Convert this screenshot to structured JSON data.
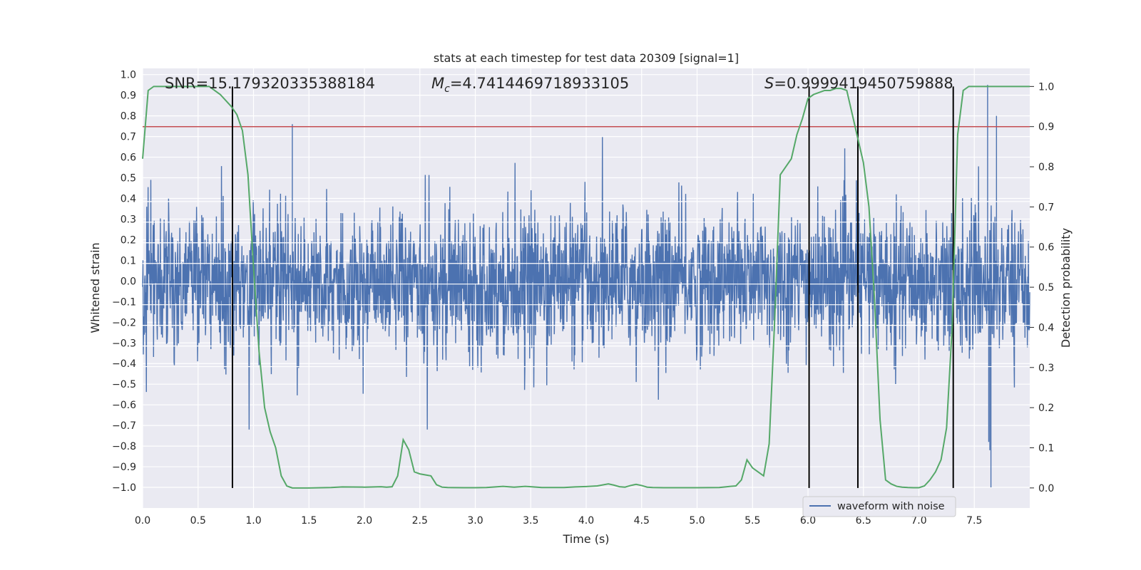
{
  "chart_data": {
    "type": "line",
    "title": "stats at each timestep for test data 20309 [signal=1]",
    "xlabel": "Time (s)",
    "ylabel": "Whitened strain",
    "ylabel_right": "Detection probability",
    "xlim": [
      0.0,
      8.0
    ],
    "ylim": [
      -1.1,
      1.03
    ],
    "ylim_right": [
      -0.05,
      1.045
    ],
    "x_ticks": [
      "0.0",
      "0.5",
      "1.0",
      "1.5",
      "2.0",
      "2.5",
      "3.0",
      "3.5",
      "4.0",
      "4.5",
      "5.0",
      "5.5",
      "6.0",
      "6.5",
      "7.0",
      "7.5"
    ],
    "y_ticks": [
      "1.0",
      "0.9",
      "0.8",
      "0.7",
      "0.6",
      "0.5",
      "0.4",
      "0.3",
      "0.2",
      "0.1",
      "0.0",
      "−0.1",
      "−0.2",
      "−0.3",
      "−0.4",
      "−0.5",
      "−0.6",
      "−0.7",
      "−0.8",
      "−0.9",
      "−1.0"
    ],
    "y_ticks_right": [
      "1.0",
      "0.9",
      "0.8",
      "0.7",
      "0.6",
      "0.5",
      "0.4",
      "0.3",
      "0.2",
      "0.1",
      "0.0"
    ],
    "grid": true,
    "legend": {
      "location": "lower-right",
      "entries": [
        "waveform with noise"
      ]
    },
    "annotations": {
      "snr": "SNR=15.179320335388184",
      "mc_symbol": "M",
      "mc_sub": "c",
      "mc_value": "=4.7414469718933105",
      "s_symbol": "S",
      "s_value": "=0.9999419450759888"
    },
    "threshold_probability": 0.9,
    "vertical_lines_time": [
      0.81,
      6.01,
      6.45,
      7.31
    ],
    "waveform": {
      "name": "waveform with noise",
      "duration_s": 8.0,
      "typical_amplitude": 0.4,
      "peak_max": 1.0,
      "peak_min": -1.0
    },
    "probability_series": {
      "x": [
        0.0,
        0.05,
        0.1,
        0.2,
        0.3,
        0.4,
        0.5,
        0.6,
        0.7,
        0.8,
        0.85,
        0.9,
        0.95,
        1.0,
        1.05,
        1.1,
        1.15,
        1.2,
        1.25,
        1.3,
        1.35,
        1.5,
        1.7,
        1.8,
        2.0,
        2.15,
        2.2,
        2.25,
        2.3,
        2.35,
        2.4,
        2.45,
        2.5,
        2.6,
        2.65,
        2.7,
        2.75,
        2.8,
        2.9,
        3.0,
        3.1,
        3.25,
        3.35,
        3.45,
        3.5,
        3.6,
        3.8,
        3.9,
        4.0,
        4.1,
        4.2,
        4.25,
        4.3,
        4.35,
        4.4,
        4.45,
        4.5,
        4.55,
        4.6,
        4.7,
        5.0,
        5.2,
        5.3,
        5.35,
        5.4,
        5.45,
        5.5,
        5.55,
        5.6,
        5.65,
        5.7,
        5.75,
        5.8,
        5.85,
        5.9,
        5.95,
        6.0,
        6.05,
        6.1,
        6.15,
        6.2,
        6.25,
        6.3,
        6.35,
        6.4,
        6.45,
        6.5,
        6.55,
        6.6,
        6.65,
        6.7,
        6.75,
        6.8,
        6.85,
        6.9,
        6.95,
        7.0,
        7.05,
        7.1,
        7.15,
        7.2,
        7.25,
        7.3,
        7.35,
        7.4,
        7.45,
        7.55,
        7.65,
        8.0
      ],
      "y": [
        0.82,
        0.99,
        1.0,
        1.0,
        1.0,
        1.0,
        1.0,
        1.0,
        0.98,
        0.95,
        0.93,
        0.89,
        0.78,
        0.55,
        0.34,
        0.2,
        0.14,
        0.1,
        0.03,
        0.005,
        0.0,
        0.0,
        0.001,
        0.0025,
        0.002,
        0.003,
        0.002,
        0.003,
        0.03,
        0.12,
        0.095,
        0.04,
        0.035,
        0.03,
        0.008,
        0.002,
        0.001,
        0.0008,
        0.0005,
        0.0005,
        0.001,
        0.004,
        0.002,
        0.004,
        0.003,
        0.001,
        0.001,
        0.0025,
        0.0035,
        0.005,
        0.01,
        0.007,
        0.003,
        0.002,
        0.006,
        0.009,
        0.006,
        0.002,
        0.001,
        0.0005,
        0.0005,
        0.001,
        0.004,
        0.005,
        0.02,
        0.07,
        0.05,
        0.04,
        0.03,
        0.11,
        0.42,
        0.78,
        0.8,
        0.82,
        0.88,
        0.92,
        0.97,
        0.98,
        0.985,
        0.99,
        0.99,
        0.995,
        0.995,
        0.99,
        0.93,
        0.87,
        0.81,
        0.7,
        0.47,
        0.17,
        0.02,
        0.01,
        0.004,
        0.002,
        0.001,
        0.0005,
        0.0005,
        0.005,
        0.02,
        0.04,
        0.07,
        0.15,
        0.4,
        0.88,
        0.99,
        1.0,
        1.0,
        1.0,
        1.0
      ]
    }
  }
}
